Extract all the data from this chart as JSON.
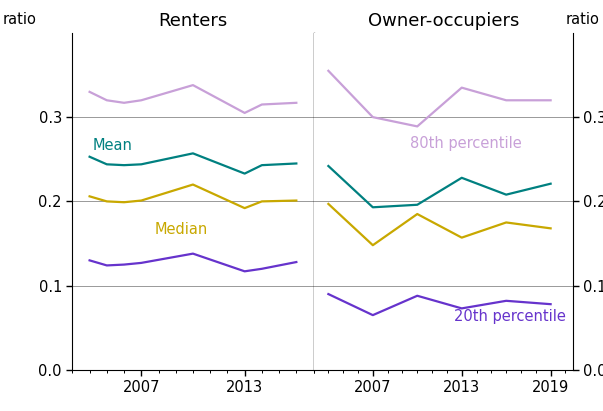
{
  "r_x": [
    2004,
    2005,
    2006,
    2007,
    2010,
    2013,
    2014,
    2016
  ],
  "r_80th": [
    0.33,
    0.32,
    0.317,
    0.32,
    0.338,
    0.305,
    0.315,
    0.317
  ],
  "r_mean": [
    0.253,
    0.244,
    0.243,
    0.244,
    0.257,
    0.233,
    0.243,
    0.245
  ],
  "r_median": [
    0.206,
    0.2,
    0.199,
    0.201,
    0.22,
    0.192,
    0.2,
    0.201
  ],
  "r_20th": [
    0.13,
    0.124,
    0.125,
    0.127,
    0.138,
    0.117,
    0.12,
    0.128
  ],
  "o_x": [
    2004,
    2007,
    2010,
    2013,
    2016,
    2019
  ],
  "o_80th": [
    0.355,
    0.3,
    0.289,
    0.335,
    0.32,
    0.32
  ],
  "o_mean": [
    0.242,
    0.193,
    0.196,
    0.228,
    0.208,
    0.221
  ],
  "o_median": [
    0.197,
    0.148,
    0.185,
    0.157,
    0.175,
    0.168
  ],
  "o_20th": [
    0.09,
    0.065,
    0.088,
    0.073,
    0.082,
    0.078
  ],
  "color_80th": "#c8a0d8",
  "color_mean": "#008080",
  "color_median": "#c8a800",
  "color_20th": "#6633cc",
  "ylim": [
    0.0,
    0.4
  ],
  "yticks": [
    0.0,
    0.1,
    0.2,
    0.3
  ],
  "ytick_labels": [
    "0.0",
    "0.1",
    "0.2",
    "0.3"
  ],
  "r_xlim": [
    2003.0,
    2017.0
  ],
  "o_xlim": [
    2003.0,
    2020.5
  ],
  "r_xticks": [
    2007,
    2013
  ],
  "o_xticks": [
    2007,
    2013,
    2019
  ],
  "renters_title": "Renters",
  "owner_title": "Owner-occupiers",
  "label_mean": "Mean",
  "label_median": "Median",
  "label_80th": "80th percentile",
  "label_20th": "20th percentile",
  "ylabel": "ratio",
  "background": "#ffffff",
  "grid_color": "#999999",
  "spine_color": "#000000",
  "linewidth": 1.6
}
